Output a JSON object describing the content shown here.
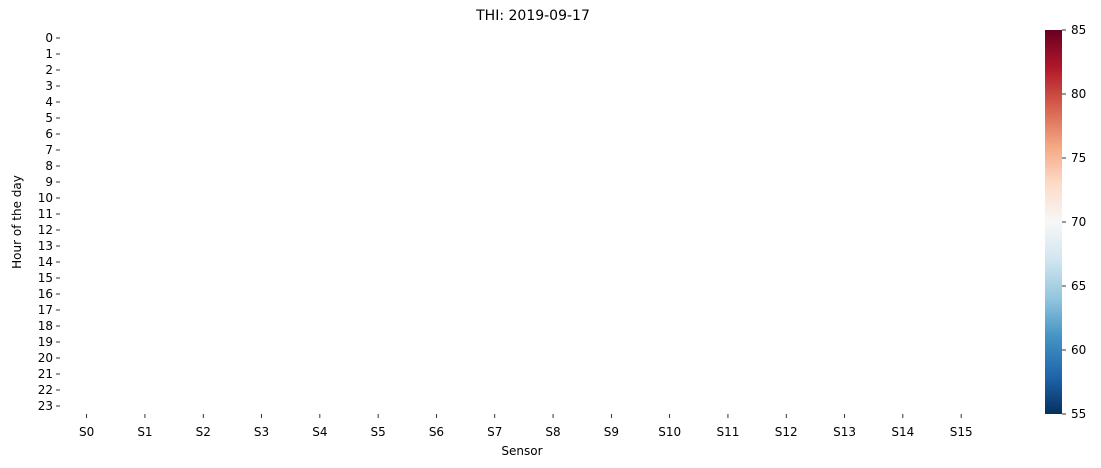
{
  "chart_data": {
    "type": "heatmap",
    "title": "THI: 2019-09-17",
    "xlabel": "Sensor",
    "ylabel": "Hour of the day",
    "x_categories": [
      "S0",
      "S1",
      "S2",
      "S3",
      "S4",
      "S5",
      "S6",
      "S7",
      "S8",
      "S9",
      "S10",
      "S11",
      "S12",
      "S13",
      "S14",
      "S15"
    ],
    "y_categories": [
      "0",
      "1",
      "2",
      "3",
      "4",
      "5",
      "6",
      "7",
      "8",
      "9",
      "10",
      "11",
      "12",
      "13",
      "14",
      "15",
      "16",
      "17",
      "18",
      "19",
      "20",
      "21",
      "22",
      "23"
    ],
    "values": [],
    "colorbar": {
      "min": 55,
      "max": 85,
      "ticks": [
        55,
        60,
        65,
        70,
        75,
        80,
        85
      ],
      "colormap": "RdBu_r",
      "colors": [
        "#053061",
        "#2166ac",
        "#4393c3",
        "#92c5de",
        "#d1e5f0",
        "#f7f7f7",
        "#fddbc7",
        "#f4a582",
        "#d6604d",
        "#b2182b",
        "#67001f"
      ]
    },
    "grid": false
  }
}
